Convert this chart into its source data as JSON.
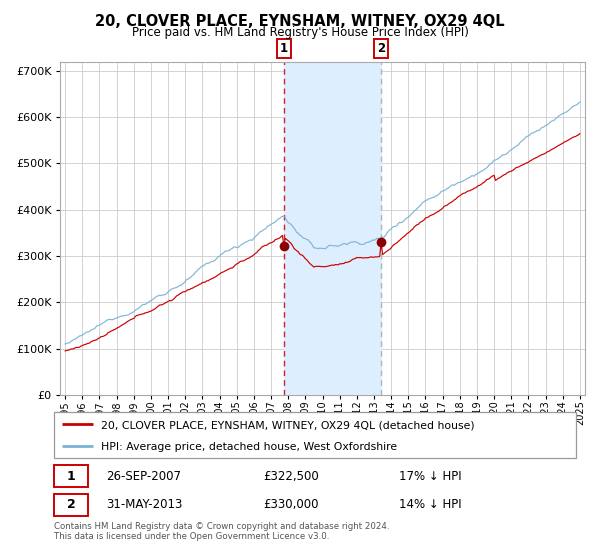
{
  "title": "20, CLOVER PLACE, EYNSHAM, WITNEY, OX29 4QL",
  "subtitle": "Price paid vs. HM Land Registry's House Price Index (HPI)",
  "legend_red": "20, CLOVER PLACE, EYNSHAM, WITNEY, OX29 4QL (detached house)",
  "legend_blue": "HPI: Average price, detached house, West Oxfordshire",
  "transaction1_date": "26-SEP-2007",
  "transaction1_price": 322500,
  "transaction1_label": "17% ↓ HPI",
  "transaction2_date": "31-MAY-2013",
  "transaction2_price": 330000,
  "transaction2_label": "14% ↓ HPI",
  "footnote": "Contains HM Land Registry data © Crown copyright and database right 2024.\nThis data is licensed under the Open Government Licence v3.0.",
  "hpi_color": "#7ab3d4",
  "price_color": "#cc0000",
  "shade_color": "#ddeeff",
  "marker_color": "#8b0000",
  "background_color": "#ffffff",
  "grid_color": "#cccccc",
  "ylim": [
    0,
    720000
  ],
  "year_start": 1995,
  "year_end": 2025,
  "transaction1_year": 2007.75,
  "transaction2_year": 2013.42
}
